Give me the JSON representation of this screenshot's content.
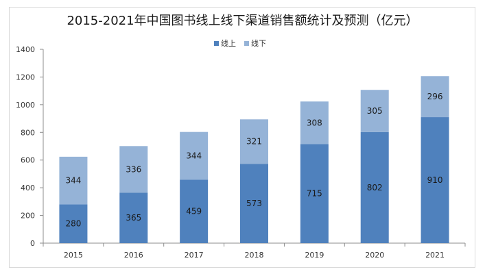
{
  "chart_data": {
    "type": "bar",
    "stacked": true,
    "title": "2015-2021年中国图书线上线下渠道销售额统计及预测（亿元）",
    "categories": [
      "2015",
      "2016",
      "2017",
      "2018",
      "2019",
      "2020",
      "2021"
    ],
    "series": [
      {
        "name": "线上",
        "color": "#4f81bd",
        "values": [
          280,
          365,
          459,
          573,
          715,
          802,
          910
        ]
      },
      {
        "name": "线下",
        "color": "#95b3d7",
        "values": [
          344,
          336,
          344,
          321,
          308,
          305,
          296
        ]
      }
    ],
    "ylim": [
      0,
      1400
    ],
    "yticks": [
      0,
      200,
      400,
      600,
      800,
      1000,
      1200,
      1400
    ],
    "grid": false,
    "legend_position": "top-center"
  }
}
